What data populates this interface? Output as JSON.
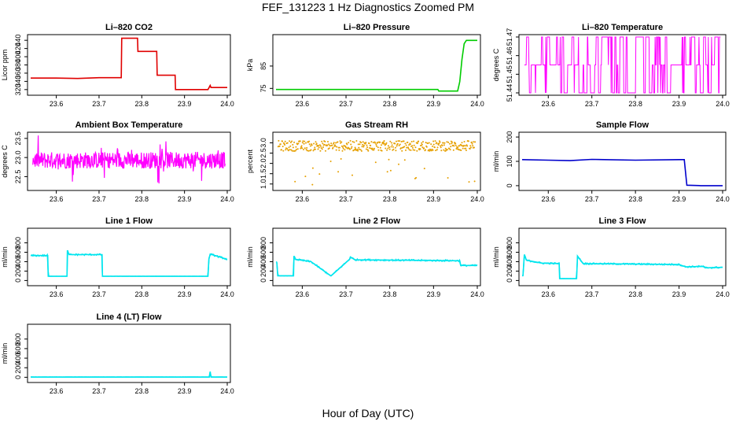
{
  "figure": {
    "title": "FEF_131223 1 Hz Diagnostics Zoomed PM",
    "xlabel": "Hour of Day (UTC)"
  },
  "chart_data": [
    {
      "type": "line",
      "title": "Li–820 CO2",
      "ylabel": "Licor ppm",
      "color": "#e00000",
      "xlim": [
        23.54,
        24.0
      ],
      "ylim": [
        312,
        448
      ],
      "xticks": [
        "23.6",
        "23.7",
        "23.8",
        "23.9",
        "24.0"
      ],
      "yticks": [
        "320",
        "340",
        "360",
        "380",
        "400",
        "420",
        "440"
      ],
      "x": [
        23.54,
        23.6,
        23.65,
        23.7,
        23.752,
        23.753,
        23.79,
        23.791,
        23.835,
        23.836,
        23.878,
        23.879,
        23.955,
        23.96,
        23.962,
        24.0
      ],
      "y": [
        348,
        348,
        347,
        349,
        349,
        445,
        445,
        413,
        413,
        355,
        355,
        320,
        320,
        330,
        325,
        325
      ]
    },
    {
      "type": "line",
      "title": "Li–820 Pressure",
      "ylabel": "kPa",
      "color": "#00cc00",
      "xlim": [
        23.54,
        24.0
      ],
      "ylim": [
        73,
        98
      ],
      "xticks": [
        "23.6",
        "23.7",
        "23.8",
        "23.9",
        "24.0"
      ],
      "yticks": [
        "75",
        "85"
      ],
      "x": [
        23.54,
        23.7,
        23.91,
        23.912,
        23.955,
        23.96,
        23.965,
        23.97,
        23.975,
        24.0
      ],
      "y": [
        74.5,
        74.5,
        74.5,
        73.8,
        73.8,
        78,
        88,
        95,
        96.5,
        96.5
      ]
    },
    {
      "type": "line",
      "title": "Li–820 Temperature",
      "ylabel": "degrees C",
      "color": "#ff00ff",
      "xlim": [
        23.54,
        24.0
      ],
      "ylim": [
        51.44,
        51.47
      ],
      "xticks": [
        "23.6",
        "23.7",
        "23.8",
        "23.9",
        "24.0"
      ],
      "yticks": [
        "51.44",
        "51.45",
        "51.46",
        "51.47"
      ],
      "levels": [
        51.44,
        51.455,
        51.47
      ]
    },
    {
      "type": "line",
      "title": "Ambient Box Temperature",
      "ylabel": "degrees C",
      "color": "#ff00ff",
      "xlim": [
        23.54,
        24.0
      ],
      "ylim": [
        22.2,
        23.6
      ],
      "xticks": [
        "23.6",
        "23.7",
        "23.8",
        "23.9",
        "24.0"
      ],
      "yticks": [
        "22.5",
        "23.0",
        "23.5"
      ],
      "center": 22.93,
      "noise": 0.22
    },
    {
      "type": "scatter",
      "title": "Gas Stream RH",
      "ylabel": "percent",
      "color": "#e6a000",
      "xlim": [
        23.54,
        24.0
      ],
      "ylim": [
        0.8,
        3.4
      ],
      "xticks": [
        "23.6",
        "23.7",
        "23.8",
        "23.9",
        "24.0"
      ],
      "yticks": [
        "1.0",
        "1.5",
        "2.0",
        "2.5",
        "3.0"
      ],
      "center": 2.85,
      "noise": 0.25
    },
    {
      "type": "line",
      "title": "Sample Flow",
      "ylabel": "ml/min",
      "color": "#0000cc",
      "xlim": [
        23.54,
        24.0
      ],
      "ylim": [
        -10,
        210
      ],
      "xticks": [
        "23.6",
        "23.7",
        "23.8",
        "23.9",
        "24.0"
      ],
      "yticks": [
        "0",
        "100",
        "200"
      ],
      "x": [
        23.54,
        23.6,
        23.65,
        23.7,
        23.8,
        23.9,
        23.912,
        23.918,
        23.95,
        24.0
      ],
      "y": [
        107,
        105,
        103,
        108,
        105,
        107,
        107,
        2,
        0,
        0
      ]
    },
    {
      "type": "line",
      "title": "Line 1 Flow",
      "ylabel": "ml/min",
      "color": "#00e5ee",
      "xlim": [
        23.54,
        24.0
      ],
      "ylim": [
        -60,
        1060
      ],
      "xticks": [
        "23.6",
        "23.7",
        "23.8",
        "23.9",
        "24.0"
      ],
      "yticks": [
        "0",
        "200",
        "400",
        "600",
        "800"
      ],
      "x": [
        23.54,
        23.58,
        23.581,
        23.625,
        23.626,
        23.63,
        23.707,
        23.708,
        23.955,
        23.957,
        23.96,
        24.0
      ],
      "y": [
        530,
        530,
        90,
        90,
        640,
        550,
        550,
        90,
        90,
        450,
        560,
        450
      ]
    },
    {
      "type": "line",
      "title": "Line 2 Flow",
      "ylabel": "ml/min",
      "color": "#00e5ee",
      "xlim": [
        23.54,
        24.0
      ],
      "ylim": [
        -60,
        1060
      ],
      "xticks": [
        "23.6",
        "23.7",
        "23.8",
        "23.9",
        "24.0"
      ],
      "yticks": [
        "0",
        "200",
        "400",
        "600",
        "800"
      ],
      "x": [
        23.542,
        23.544,
        23.58,
        23.581,
        23.585,
        23.62,
        23.665,
        23.666,
        23.708,
        23.71,
        23.72,
        23.96,
        23.962,
        24.0
      ],
      "y": [
        380,
        100,
        100,
        520,
        450,
        400,
        100,
        100,
        450,
        500,
        440,
        420,
        320,
        320
      ]
    },
    {
      "type": "line",
      "title": "Line 3 Flow",
      "ylabel": "ml/min",
      "color": "#00e5ee",
      "xlim": [
        23.54,
        24.0
      ],
      "ylim": [
        -60,
        1060
      ],
      "xticks": [
        "23.6",
        "23.7",
        "23.8",
        "23.9",
        "24.0"
      ],
      "yticks": [
        "0",
        "200",
        "400",
        "600",
        "800"
      ],
      "x": [
        23.542,
        23.545,
        23.55,
        23.585,
        23.625,
        23.626,
        23.665,
        23.667,
        23.68,
        23.9,
        23.915,
        23.955,
        23.96,
        24.0
      ],
      "y": [
        100,
        550,
        430,
        370,
        360,
        40,
        40,
        520,
        360,
        340,
        290,
        300,
        270,
        280
      ]
    },
    {
      "type": "line",
      "title": "Line 4 (LT) Flow",
      "ylabel": "ml/min",
      "color": "#00e5ee",
      "xlim": [
        23.54,
        24.0
      ],
      "ylim": [
        -60,
        1060
      ],
      "xticks": [
        "23.6",
        "23.7",
        "23.8",
        "23.9",
        "24.0"
      ],
      "yticks": [
        "0",
        "200",
        "400",
        "600",
        "800"
      ],
      "x": [
        23.54,
        23.958,
        23.96,
        23.962,
        24.0
      ],
      "y": [
        5,
        5,
        120,
        5,
        5
      ]
    }
  ]
}
